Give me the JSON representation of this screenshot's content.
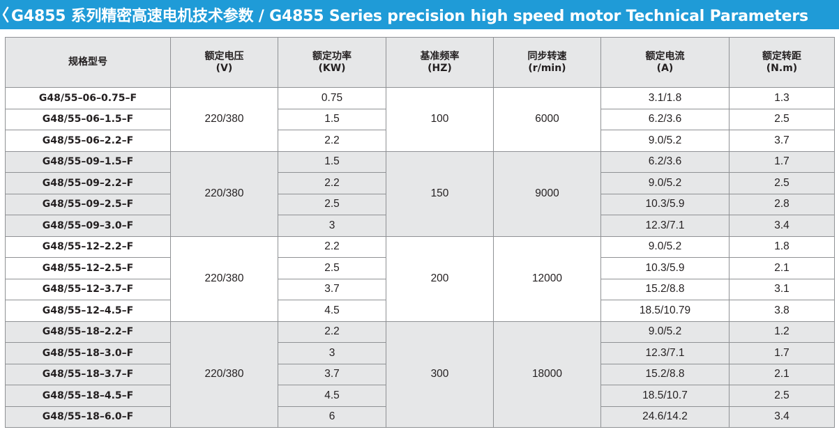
{
  "header": {
    "title": "G4855 系列精密高速电机技术参数 / G4855 Series precision high speed motor Technical Parameters",
    "chevron_icon": "chevron-left-icon",
    "bar_color": "#1f9bd7"
  },
  "table": {
    "columns": [
      {
        "line1": "规格型号",
        "line2": ""
      },
      {
        "line1": "额定电压",
        "line2": "(V)"
      },
      {
        "line1": "额定功率",
        "line2": "(KW)"
      },
      {
        "line1": "基准频率",
        "line2": "(HZ)"
      },
      {
        "line1": "同步转速",
        "line2": "(r/min)"
      },
      {
        "line1": "额定电流",
        "line2": "(A)"
      },
      {
        "line1": "额定转距",
        "line2": "(N.m)"
      }
    ],
    "groups": [
      {
        "voltage": "220/380",
        "frequency": "100",
        "speed": "6000",
        "rows": [
          {
            "model": "G48/55–06–0.75–F",
            "power": "0.75",
            "current": "3.1/1.8",
            "torque": "1.3"
          },
          {
            "model": "G48/55–06–1.5–F",
            "power": "1.5",
            "current": "6.2/3.6",
            "torque": "2.5"
          },
          {
            "model": "G48/55–06–2.2–F",
            "power": "2.2",
            "current": "9.0/5.2",
            "torque": "3.7"
          }
        ]
      },
      {
        "voltage": "220/380",
        "frequency": "150",
        "speed": "9000",
        "rows": [
          {
            "model": "G48/55–09–1.5–F",
            "power": "1.5",
            "current": "6.2/3.6",
            "torque": "1.7"
          },
          {
            "model": "G48/55–09–2.2–F",
            "power": "2.2",
            "current": "9.0/5.2",
            "torque": "2.5"
          },
          {
            "model": "G48/55–09–2.5–F",
            "power": "2.5",
            "current": "10.3/5.9",
            "torque": "2.8"
          },
          {
            "model": "G48/55–09–3.0–F",
            "power": "3",
            "current": "12.3/7.1",
            "torque": "3.4"
          }
        ]
      },
      {
        "voltage": "220/380",
        "frequency": "200",
        "speed": "12000",
        "rows": [
          {
            "model": "G48/55–12–2.2–F",
            "power": "2.2",
            "current": "9.0/5.2",
            "torque": "1.8"
          },
          {
            "model": "G48/55–12–2.5–F",
            "power": "2.5",
            "current": "10.3/5.9",
            "torque": "2.1"
          },
          {
            "model": "G48/55–12–3.7–F",
            "power": "3.7",
            "current": "15.2/8.8",
            "torque": "3.1"
          },
          {
            "model": "G48/55–12–4.5–F",
            "power": "4.5",
            "current": "18.5/10.79",
            "torque": "3.8"
          }
        ]
      },
      {
        "voltage": "220/380",
        "frequency": "300",
        "speed": "18000",
        "rows": [
          {
            "model": "G48/55–18–2.2–F",
            "power": "2.2",
            "current": "9.0/5.2",
            "torque": "1.2"
          },
          {
            "model": "G48/55–18–3.0–F",
            "power": "3",
            "current": "12.3/7.1",
            "torque": "1.7"
          },
          {
            "model": "G48/55–18–3.7–F",
            "power": "3.7",
            "current": "15.2/8.8",
            "torque": "2.1"
          },
          {
            "model": "G48/55–18–4.5–F",
            "power": "4.5",
            "current": "18.5/10.7",
            "torque": "2.5"
          },
          {
            "model": "G48/55–18–6.0–F",
            "power": "6",
            "current": "24.6/14.2",
            "torque": "3.4"
          }
        ]
      }
    ]
  }
}
